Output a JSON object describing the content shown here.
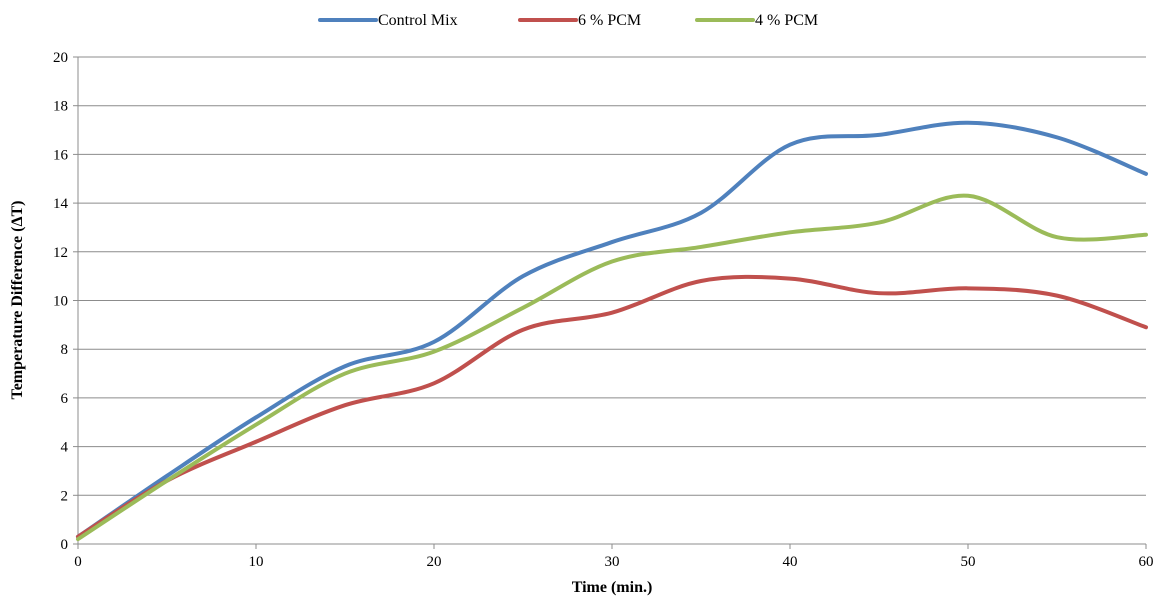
{
  "chart_data": {
    "type": "line",
    "title": "",
    "xlabel": "Time (min.)",
    "ylabel": "Temperature Difference (ΔT)",
    "xlim": [
      0,
      60
    ],
    "ylim": [
      0,
      20
    ],
    "x_ticks": [
      0,
      10,
      20,
      30,
      40,
      50,
      60
    ],
    "y_ticks": [
      0,
      2,
      4,
      6,
      8,
      10,
      12,
      14,
      16,
      18,
      20
    ],
    "grid": "horizontal",
    "legend_position": "top",
    "x": [
      0,
      5,
      10,
      15,
      20,
      25,
      30,
      35,
      40,
      45,
      50,
      55,
      60
    ],
    "series": [
      {
        "name": "Control Mix",
        "color": "#4f81bd",
        "values": [
          0.3,
          2.8,
          5.2,
          7.3,
          8.3,
          11.0,
          12.4,
          13.6,
          16.4,
          16.8,
          17.3,
          16.7,
          15.2
        ]
      },
      {
        "name": "6 % PCM",
        "color": "#c0504d",
        "values": [
          0.3,
          2.6,
          4.2,
          5.7,
          6.6,
          8.8,
          9.5,
          10.8,
          10.9,
          10.3,
          10.5,
          10.2,
          8.9
        ]
      },
      {
        "name": "4 % PCM",
        "color": "#9bbb59",
        "values": [
          0.2,
          2.6,
          4.9,
          7.0,
          7.9,
          9.7,
          11.6,
          12.2,
          12.8,
          13.2,
          14.3,
          12.6,
          12.7
        ]
      }
    ]
  }
}
